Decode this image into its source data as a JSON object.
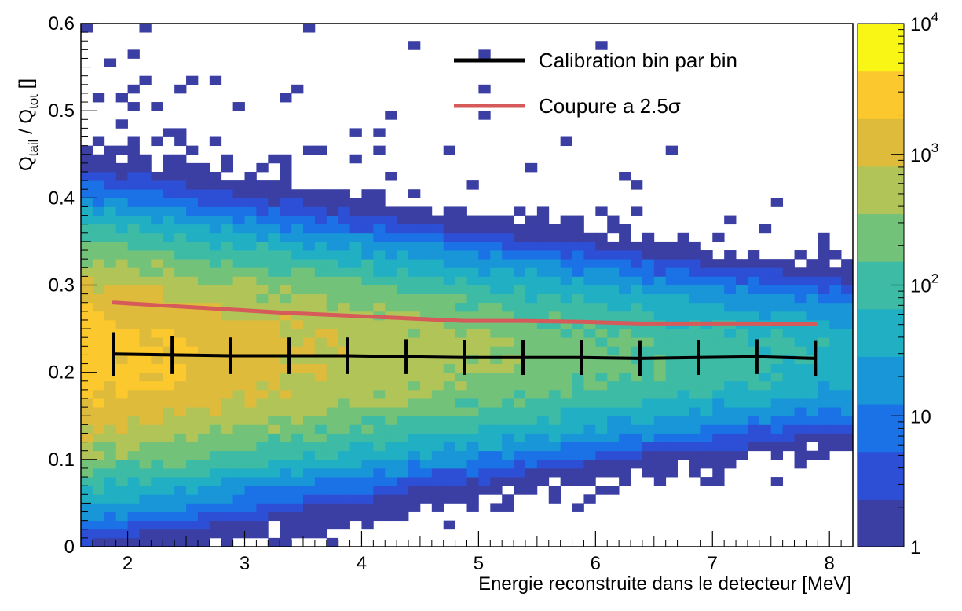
{
  "chart_data": {
    "type": "heatmap",
    "title": "",
    "xlabel": "Energie reconstruite dans le detecteur [MeV]",
    "ylabel": {
      "main": "Q",
      "sub_tail": "tail",
      "separator": " / Q",
      "sub_tot": "tot",
      "unit": " []"
    },
    "xlim": [
      1.6,
      8.2
    ],
    "ylim": [
      0,
      0.6
    ],
    "x_ticks": [
      "2",
      "3",
      "4",
      "5",
      "6",
      "7",
      "8"
    ],
    "y_ticks": [
      "0",
      "0.1",
      "0.2",
      "0.3",
      "0.4",
      "0.5",
      "0.6"
    ],
    "colorbar": {
      "scale": "log",
      "range": [
        1,
        10000
      ],
      "tick_labels": [
        {
          "base": "1",
          "exp": "",
          "value": 1
        },
        {
          "base": "10",
          "exp": "",
          "value": 10
        },
        {
          "base": "10",
          "exp": "2",
          "value": 100
        },
        {
          "base": "10",
          "exp": "3",
          "value": 1000
        },
        {
          "base": "10",
          "exp": "4",
          "value": 10000
        }
      ],
      "colors": [
        "#3b3fa4",
        "#2d4fd6",
        "#1a72e6",
        "#1896d8",
        "#21afc4",
        "#3dbba5",
        "#73c27a",
        "#b0c458",
        "#dfbb3c",
        "#fbc92d",
        "#f9f615"
      ]
    },
    "density_model": {
      "mean": 0.218,
      "sigma_at_2MeV": 0.055,
      "sigma_at_8MeV": 0.035,
      "peak_count": 3000
    },
    "legend": {
      "position": "top-right",
      "entries": [
        {
          "label": "Calibration bin par bin",
          "color": "#000000"
        },
        {
          "label": "Coupure a 2.5σ",
          "color": "#d65a5a"
        }
      ]
    },
    "series": [
      {
        "name": "Calibration bin par bin",
        "color": "#000000",
        "x": [
          1.88,
          2.38,
          2.88,
          3.38,
          3.88,
          4.38,
          4.88,
          5.38,
          5.88,
          6.38,
          6.88,
          7.38,
          7.88
        ],
        "y": [
          0.221,
          0.22,
          0.219,
          0.219,
          0.219,
          0.218,
          0.217,
          0.217,
          0.217,
          0.216,
          0.217,
          0.218,
          0.216
        ],
        "err": [
          0.025,
          0.022,
          0.021,
          0.021,
          0.021,
          0.02,
          0.02,
          0.02,
          0.02,
          0.02,
          0.02,
          0.02,
          0.02
        ]
      },
      {
        "name": "Coupure a 2.5σ",
        "color": "#d65a5a",
        "x": [
          1.88,
          2.38,
          2.88,
          3.38,
          3.88,
          4.38,
          4.88,
          5.38,
          5.88,
          6.38,
          6.88,
          7.38,
          7.88
        ],
        "y": [
          0.28,
          0.276,
          0.272,
          0.268,
          0.265,
          0.262,
          0.259,
          0.259,
          0.258,
          0.256,
          0.256,
          0.256,
          0.255
        ]
      }
    ]
  }
}
